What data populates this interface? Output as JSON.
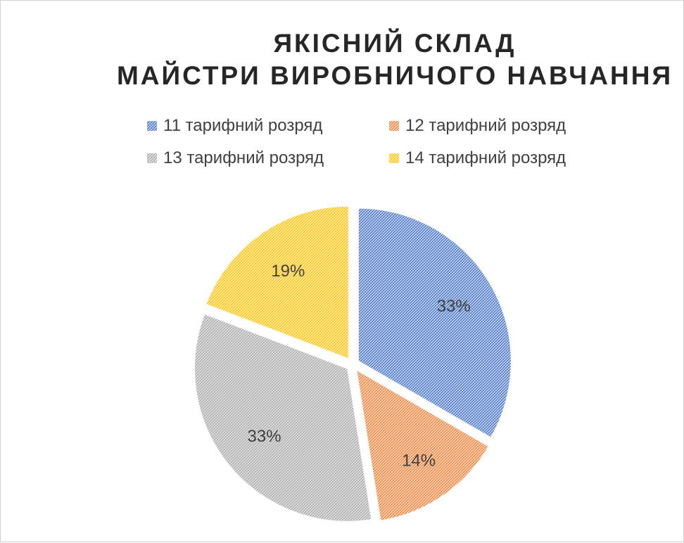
{
  "chart_data": {
    "type": "pie",
    "title_lines": [
      "ЯКІСНИЙ СКЛАД",
      "МАЙСТРИ ВИРОБНИЧОГО НАВЧАННЯ"
    ],
    "categories": [
      "11 тарифний розряд",
      "12 тарифний розряд",
      "13 тарифний розряд",
      "14 тарифний розряд"
    ],
    "values": [
      33,
      14,
      33,
      19
    ],
    "labels": [
      "33%",
      "14%",
      "33%",
      "19%"
    ],
    "colors": [
      "#4472C4",
      "#ED7D31",
      "#A5A5A5",
      "#FFC000"
    ],
    "fill": "hatched pattern",
    "legend_position": "top"
  }
}
